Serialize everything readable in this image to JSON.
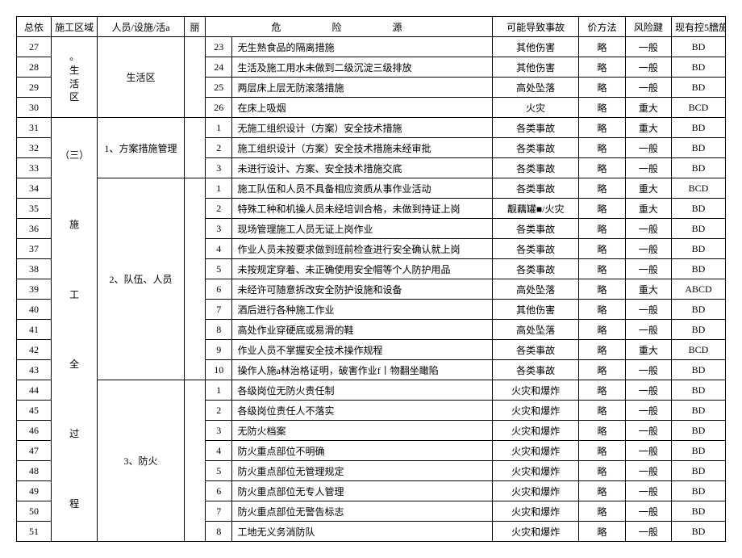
{
  "headers": {
    "idx": "总依",
    "area": "施工区域",
    "activity": "人员/设施/活a",
    "hdr_icon": "丽",
    "hazard": "危    险    源",
    "accident": "可能导致事故",
    "method": "价方法",
    "risk": "风险踺",
    "control": "现有控5膪施"
  },
  "area1_label": "。生活区",
  "area2_label": "（三）   施   工   全   过   程",
  "groups": {
    "living": "生活区",
    "g1": "1、方案措施管理",
    "g2": "2、队伍、人员",
    "g3": "3、防火"
  },
  "rows": [
    {
      "idx": "27",
      "sub": "23",
      "haz": "无生熟食品的隔离措施",
      "acc": "其他伤害",
      "meth": "略",
      "risk": "一般",
      "ctrl": "BD"
    },
    {
      "idx": "28",
      "sub": "24",
      "haz": "生活及施工用水未做到二级沉淀三级排放",
      "acc": "其他伤害",
      "meth": "略",
      "risk": "一般",
      "ctrl": "BD"
    },
    {
      "idx": "29",
      "sub": "25",
      "haz": "两层床上层无防滚落措施",
      "acc": "高处坠落",
      "meth": "略",
      "risk": "一般",
      "ctrl": "BD"
    },
    {
      "idx": "30",
      "sub": "26",
      "haz": "在床上吸烟",
      "acc": "火灾",
      "meth": "略",
      "risk": "重大",
      "ctrl": "BCD"
    },
    {
      "idx": "31",
      "sub": "1",
      "haz": "无施工组织设计（方案）安全技术措施",
      "acc": "各类事故",
      "meth": "略",
      "risk": "重大",
      "ctrl": "BD"
    },
    {
      "idx": "32",
      "sub": "2",
      "haz": "施工组织设计（方案）安全技术措施未经审批",
      "acc": "各类事故",
      "meth": "略",
      "risk": "一般",
      "ctrl": "BD"
    },
    {
      "idx": "33",
      "sub": "3",
      "haz": "未进行设计、方案、安全技术措施交底",
      "acc": "各类事故",
      "meth": "略",
      "risk": "一般",
      "ctrl": "BD"
    },
    {
      "idx": "34",
      "sub": "1",
      "haz": "施工队伍和人员不具备相应资质从事作业活动",
      "acc": "各类事故",
      "meth": "略",
      "risk": "重大",
      "ctrl": "BCD"
    },
    {
      "idx": "35",
      "sub": "2",
      "haz": "特殊工种和机操人员未经培训合格，未做到持证上岗",
      "acc": "觏藕罐■/火灾",
      "meth": "略",
      "risk": "重大",
      "ctrl": "BD"
    },
    {
      "idx": "36",
      "sub": "3",
      "haz": "现场管理施工人员无证上岗作业",
      "acc": "各类事故",
      "meth": "略",
      "risk": "一般",
      "ctrl": "BD"
    },
    {
      "idx": "37",
      "sub": "4",
      "haz": "作业人员未按要求做到班前检查进行安全确认就上岗",
      "acc": "各类事故",
      "meth": "略",
      "risk": "一般",
      "ctrl": "BD"
    },
    {
      "idx": "38",
      "sub": "5",
      "haz": "未按规定穿着、未正确使用安全帽等个人防护用品",
      "acc": "各类事故",
      "meth": "略",
      "risk": "一般",
      "ctrl": "BD"
    },
    {
      "idx": "39",
      "sub": "6",
      "haz": "未经许可随意拆改安全防护设施和设备",
      "acc": "高处坠落",
      "meth": "略",
      "risk": "重大",
      "ctrl": "ABCD"
    },
    {
      "idx": "40",
      "sub": "7",
      "haz": "酒后进行各种施工作业",
      "acc": "其他伤害",
      "meth": "略",
      "risk": "一般",
      "ctrl": "BD"
    },
    {
      "idx": "41",
      "sub": "8",
      "haz": "高处作业穿硬底或易滑的鞋",
      "acc": "高处坠落",
      "meth": "略",
      "risk": "一般",
      "ctrl": "BD"
    },
    {
      "idx": "42",
      "sub": "9",
      "haz": "作业人员不掌握安全技术操作规程",
      "acc": "各类事故",
      "meth": "略",
      "risk": "重大",
      "ctrl": "BCD"
    },
    {
      "idx": "43",
      "sub": "10",
      "haz": "操作人施a林治格证明，破害作业f丨物翻坐瞰陷",
      "acc": "各类事故",
      "meth": "略",
      "risk": "一般",
      "ctrl": "BD"
    },
    {
      "idx": "44",
      "sub": "1",
      "haz": "各级岗位无防火责任制",
      "acc": "火灾和爆炸",
      "meth": "略",
      "risk": "一般",
      "ctrl": "BD"
    },
    {
      "idx": "45",
      "sub": "2",
      "haz": "各级岗位责任人不落实",
      "acc": "火灾和爆炸",
      "meth": "略",
      "risk": "一般",
      "ctrl": "BD"
    },
    {
      "idx": "46",
      "sub": "3",
      "haz": "无防火档案",
      "acc": "火灾和爆炸",
      "meth": "略",
      "risk": "一般",
      "ctrl": "BD"
    },
    {
      "idx": "47",
      "sub": "4",
      "haz": "防火重点部位不明确",
      "acc": "火灾和爆炸",
      "meth": "略",
      "risk": "一般",
      "ctrl": "BD"
    },
    {
      "idx": "48",
      "sub": "5",
      "haz": "防火重点部位无管理规定",
      "acc": "火灾和爆炸",
      "meth": "略",
      "risk": "一般",
      "ctrl": "BD"
    },
    {
      "idx": "49",
      "sub": "6",
      "haz": "防火重点部位无专人管理",
      "acc": "火灾和爆炸",
      "meth": "略",
      "risk": "一般",
      "ctrl": "BD"
    },
    {
      "idx": "50",
      "sub": "7",
      "haz": "防火重点部位无警告标志",
      "acc": "火灾和爆炸",
      "meth": "略",
      "risk": "一般",
      "ctrl": "BD"
    },
    {
      "idx": "51",
      "sub": "8",
      "haz": "工地无义务消防队",
      "acc": "火灾和爆炸",
      "meth": "略",
      "risk": "一般",
      "ctrl": "BD"
    }
  ]
}
